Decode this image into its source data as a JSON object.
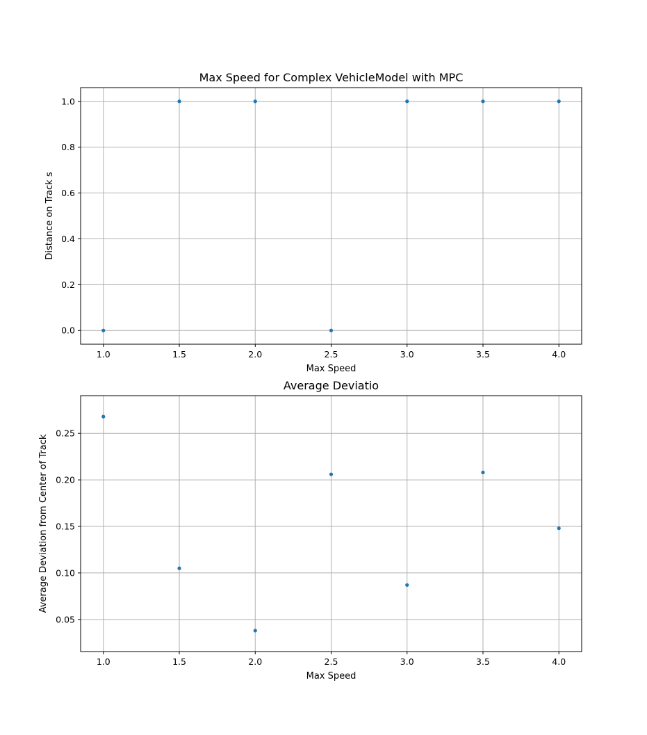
{
  "chart_data": [
    {
      "type": "scatter",
      "title": "Max Speed for Complex VehicleModel with MPC",
      "xlabel": "Max Speed",
      "ylabel": "Distance on Track s",
      "x": [
        1.0,
        1.5,
        2.0,
        2.5,
        3.0,
        3.5,
        4.0
      ],
      "y": [
        0.0,
        1.0,
        1.0,
        0.0,
        1.0,
        1.0,
        1.0
      ],
      "xlim": [
        0.85,
        4.15
      ],
      "ylim": [
        -0.06,
        1.06
      ],
      "xticks": [
        1.0,
        1.5,
        2.0,
        2.5,
        3.0,
        3.5,
        4.0
      ],
      "xtick_labels": [
        "1.0",
        "1.5",
        "2.0",
        "2.5",
        "3.0",
        "3.5",
        "4.0"
      ],
      "yticks": [
        0.0,
        0.2,
        0.4,
        0.6,
        0.8,
        1.0
      ],
      "ytick_labels": [
        "0.0",
        "0.2",
        "0.4",
        "0.6",
        "0.8",
        "1.0"
      ],
      "grid": true,
      "color": "#1f77b4"
    },
    {
      "type": "scatter",
      "title": "Average Deviatio",
      "xlabel": "Max Speed",
      "ylabel": "Average Deviation from Center of Track",
      "x": [
        1.0,
        1.5,
        2.0,
        2.5,
        3.0,
        3.5,
        4.0
      ],
      "y": [
        0.268,
        0.105,
        0.038,
        0.206,
        0.087,
        0.208,
        0.148
      ],
      "xlim": [
        0.85,
        4.15
      ],
      "ylim": [
        0.0155,
        0.2905
      ],
      "xticks": [
        1.0,
        1.5,
        2.0,
        2.5,
        3.0,
        3.5,
        4.0
      ],
      "xtick_labels": [
        "1.0",
        "1.5",
        "2.0",
        "2.5",
        "3.0",
        "3.5",
        "4.0"
      ],
      "yticks": [
        0.05,
        0.1,
        0.15,
        0.2,
        0.25
      ],
      "ytick_labels": [
        "0.05",
        "0.10",
        "0.15",
        "0.20",
        "0.25"
      ],
      "grid": true,
      "color": "#1f77b4"
    }
  ]
}
